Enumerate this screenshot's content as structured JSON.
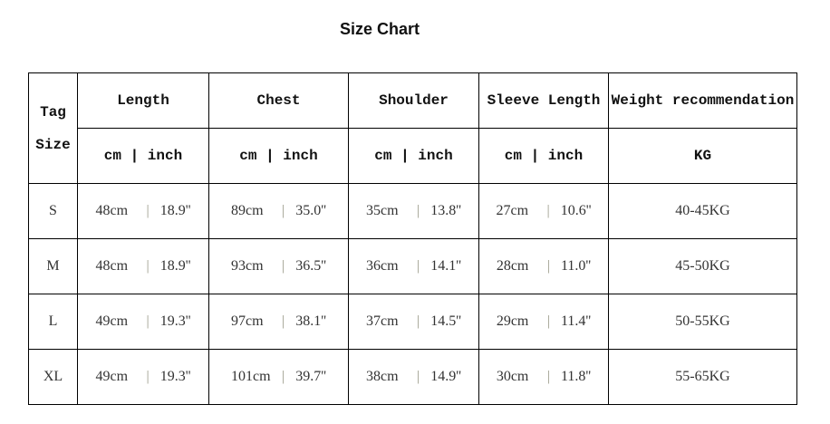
{
  "title": "Size Chart",
  "header": {
    "tag": "Tag",
    "size": "Size",
    "columns": [
      "Length",
      "Chest",
      "Shoulder",
      "Sleeve Length",
      "Weight recommendation"
    ],
    "units": [
      "cm | inch",
      "cm | inch",
      "cm | inch",
      "cm | inch",
      "KG"
    ]
  },
  "rows": [
    {
      "size": "S",
      "values": [
        [
          "48cm",
          "18.9''"
        ],
        [
          "89cm",
          "35.0''"
        ],
        [
          "35cm",
          "13.8''"
        ],
        [
          "27cm",
          "10.6''"
        ]
      ],
      "weight": "40-45KG"
    },
    {
      "size": "M",
      "values": [
        [
          "48cm",
          "18.9''"
        ],
        [
          "93cm",
          "36.5''"
        ],
        [
          "36cm",
          "14.1''"
        ],
        [
          "28cm",
          "11.0''"
        ]
      ],
      "weight": "45-50KG"
    },
    {
      "size": "L",
      "values": [
        [
          "49cm",
          "19.3''"
        ],
        [
          "97cm",
          "38.1''"
        ],
        [
          "37cm",
          "14.5''"
        ],
        [
          "29cm",
          "11.4''"
        ]
      ],
      "weight": "50-55KG"
    },
    {
      "size": "XL",
      "values": [
        [
          "49cm",
          "19.3''"
        ],
        [
          "101cm",
          "39.7''"
        ],
        [
          "38cm",
          "14.9''"
        ],
        [
          "30cm",
          "11.8''"
        ]
      ],
      "weight": "55-65KG"
    }
  ]
}
